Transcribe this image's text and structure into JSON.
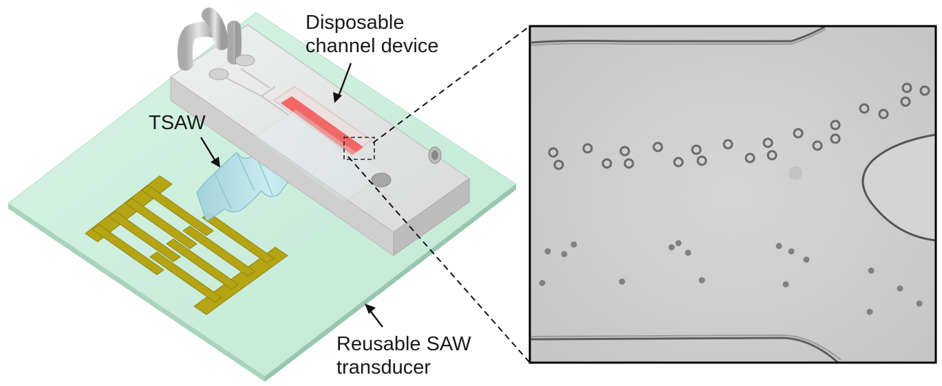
{
  "labels": {
    "disposable_line1": "Disposable",
    "disposable_line2": "channel device",
    "tsaw": "TSAW",
    "reusable_line1": "Reusable SAW",
    "reusable_line2": "transducer"
  },
  "colors": {
    "substrate": "#cdeedd",
    "electrode": "#b5a514",
    "wave": "#a9d8e2",
    "channel_highlight": "#f0605f",
    "pdms_block": "#e3e3e3",
    "micrograph_bg": "#cfcfcf"
  }
}
